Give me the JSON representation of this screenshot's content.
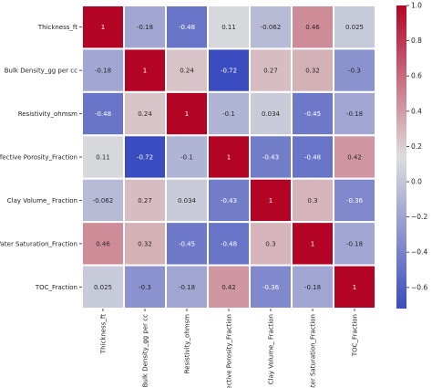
{
  "chart_data": {
    "type": "heatmap",
    "labels": [
      "Thickness_ft",
      "Bulk Density_gg per cc",
      "Resistivity_ohmsm",
      "Effective Porosity_Fraction",
      "Clay Volume_ Fraction",
      "Water Saturation_Fraction",
      "TOC_Fraction"
    ],
    "matrix": [
      [
        1,
        -0.18,
        -0.48,
        0.11,
        -0.062,
        0.46,
        0.025
      ],
      [
        -0.18,
        1,
        0.24,
        -0.72,
        0.27,
        0.32,
        -0.3
      ],
      [
        -0.48,
        0.24,
        1,
        -0.1,
        0.034,
        -0.45,
        -0.18
      ],
      [
        0.11,
        -0.72,
        -0.1,
        1,
        -0.43,
        -0.48,
        0.42
      ],
      [
        -0.062,
        0.27,
        0.034,
        -0.43,
        1,
        0.3,
        -0.36
      ],
      [
        0.46,
        0.32,
        -0.45,
        -0.48,
        0.3,
        1,
        -0.18
      ],
      [
        0.025,
        -0.3,
        -0.18,
        0.42,
        -0.36,
        -0.18,
        1
      ]
    ],
    "cell_labels": [
      [
        "1",
        "-0.18",
        "-0.48",
        "0.11",
        "-0.062",
        "0.46",
        "0.025"
      ],
      [
        "-0.18",
        "1",
        "0.24",
        "-0.72",
        "0.27",
        "0.32",
        "-0.3"
      ],
      [
        "-0.48",
        "0.24",
        "1",
        "-0.1",
        "0.034",
        "-0.45",
        "-0.18"
      ],
      [
        "0.11",
        "-0.72",
        "-0.1",
        "1",
        "-0.43",
        "-0.48",
        "0.42"
      ],
      [
        "-0.062",
        "0.27",
        "0.034",
        "-0.43",
        "1",
        "0.3",
        "-0.36"
      ],
      [
        "0.46",
        "0.32",
        "-0.45",
        "-0.48",
        "0.3",
        "1",
        "-0.18"
      ],
      [
        "0.025",
        "-0.3",
        "-0.18",
        "0.42",
        "-0.36",
        "-0.18",
        "1"
      ]
    ],
    "colormap": "coolwarm",
    "vmin": -0.72,
    "vmax": 1.0,
    "colorbar_ticks": [
      {
        "value": 1.0,
        "label": "1.0"
      },
      {
        "value": 0.8,
        "label": "0.8"
      },
      {
        "value": 0.6,
        "label": "0.6"
      },
      {
        "value": 0.4,
        "label": "0.4"
      },
      {
        "value": 0.2,
        "label": "0.2"
      },
      {
        "value": 0.0,
        "label": "0.0"
      },
      {
        "value": -0.2,
        "label": "−0.2"
      },
      {
        "value": -0.4,
        "label": "−0.4"
      },
      {
        "value": -0.6,
        "label": "−0.6"
      }
    ],
    "colors": {
      "low": "#3b4cc0",
      "mid": "#dddddd",
      "high": "#b40426",
      "cell_border": "#ffffff"
    }
  }
}
